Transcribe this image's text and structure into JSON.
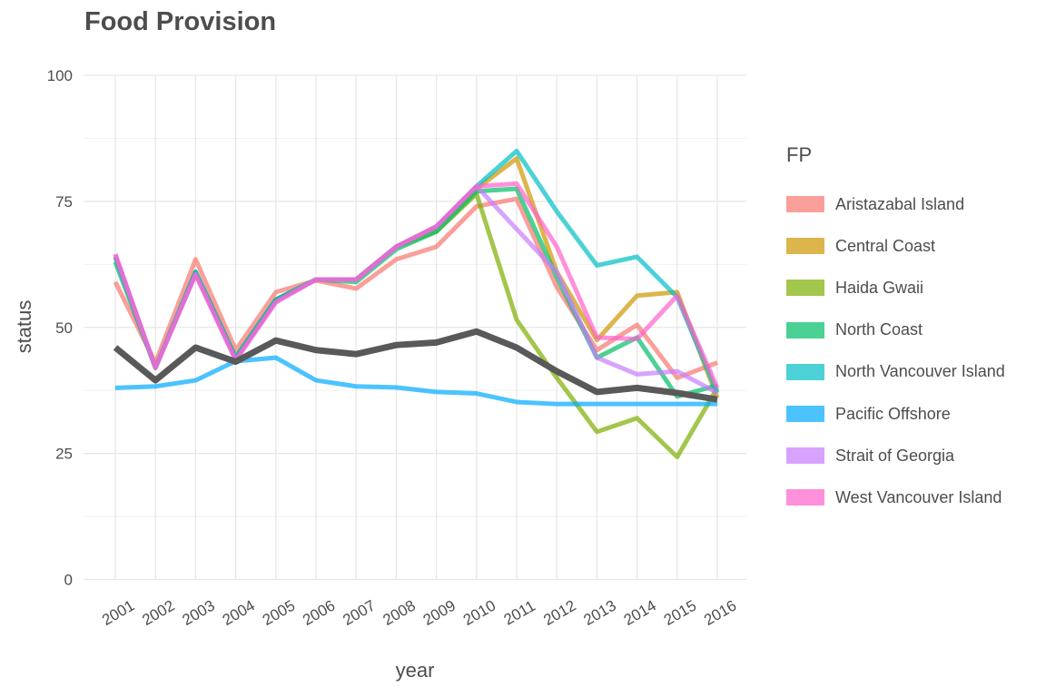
{
  "chart_data": {
    "type": "line",
    "title": "Food Provision",
    "xlabel": "year",
    "ylabel": "status",
    "x": [
      "2001",
      "2002",
      "2003",
      "2004",
      "2005",
      "2006",
      "2007",
      "2008",
      "2009",
      "2010",
      "2011",
      "2012",
      "2013",
      "2014",
      "2015",
      "2016"
    ],
    "ylim": [
      0,
      100
    ],
    "yticks": [
      0,
      25,
      50,
      75,
      100
    ],
    "grid": true,
    "legend": {
      "title": "FP",
      "placement": "right"
    },
    "series": [
      {
        "name": "Aristazabal Island",
        "color": "#F8766D",
        "values": [
          59,
          43,
          63.5,
          45.5,
          57,
          59.3,
          57.7,
          63.5,
          66,
          74,
          75.5,
          58,
          45.5,
          50.5,
          40,
          43
        ]
      },
      {
        "name": "Central Coast",
        "color": "#CD9600",
        "values": [
          64,
          42,
          61,
          44,
          55.5,
          59.5,
          59.5,
          66,
          70,
          77.5,
          83.5,
          61,
          47.5,
          56.3,
          57,
          36
        ]
      },
      {
        "name": "Haida Gwaii",
        "color": "#7CAE00",
        "values": [
          64,
          42,
          61,
          44,
          55.5,
          59.5,
          59.5,
          66,
          69,
          76.5,
          51.5,
          40,
          29.3,
          32,
          24.3,
          38
        ]
      },
      {
        "name": "North Coast",
        "color": "#00BE67",
        "values": [
          63,
          42,
          61,
          44,
          55.5,
          59.5,
          59,
          65.5,
          69,
          77,
          77.5,
          60,
          44,
          48,
          36.3,
          38.5
        ]
      },
      {
        "name": "North Vancouver Island",
        "color": "#00BFC4",
        "values": [
          64,
          42,
          61,
          44,
          55.5,
          59.5,
          59.5,
          66,
          70,
          78,
          85,
          73,
          62.3,
          64,
          56,
          37
        ]
      },
      {
        "name": "Pacific Offshore",
        "color": "#00A9FF",
        "values": [
          38,
          38.3,
          39.5,
          43.3,
          44,
          39.5,
          38.3,
          38.1,
          37.2,
          36.9,
          35.2,
          34.8,
          34.8,
          34.8,
          34.8,
          34.8
        ]
      },
      {
        "name": "Strait of Georgia",
        "color": "#C77CFF",
        "values": [
          64.5,
          42,
          60.5,
          43.5,
          55,
          59.5,
          59.5,
          66,
          70,
          78,
          69.5,
          61,
          44,
          40.7,
          41.3,
          37
        ]
      },
      {
        "name": "West Vancouver Island",
        "color": "#FF61CC",
        "values": [
          64.5,
          42,
          60.5,
          43.5,
          55,
          59.5,
          59.5,
          66,
          70,
          78,
          78.5,
          66,
          48,
          47.7,
          56.3,
          38
        ]
      }
    ],
    "overall": {
      "color": "#595959",
      "values": [
        46,
        39.5,
        46,
        43.2,
        47.4,
        45.5,
        44.7,
        46.5,
        47,
        49.2,
        46,
        41.3,
        37.2,
        38,
        37,
        35.7
      ]
    }
  }
}
